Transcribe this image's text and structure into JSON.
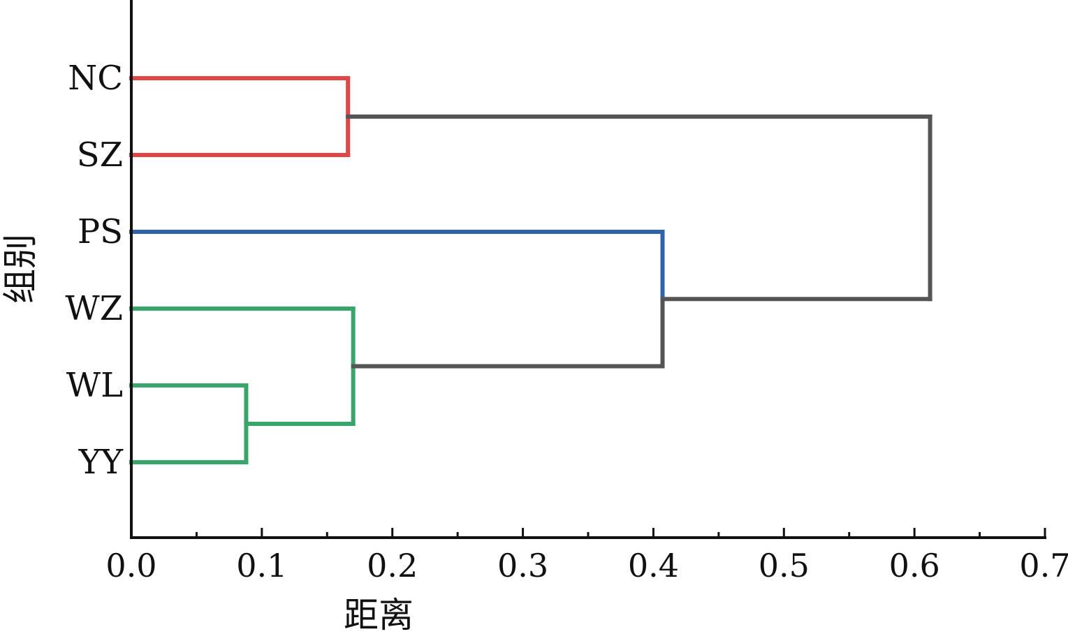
{
  "chart_data": {
    "type": "dendrogram",
    "xlabel": "距离",
    "ylabel": "组别",
    "xlim": [
      0.0,
      0.7
    ],
    "x_ticks": [
      "0.0",
      "0.1",
      "0.2",
      "0.3",
      "0.4",
      "0.5",
      "0.6",
      "0.7"
    ],
    "leaves": [
      "NC",
      "SZ",
      "PS",
      "WZ",
      "WL",
      "YY"
    ],
    "merges": [
      {
        "left": "WL",
        "right": "YY",
        "distance": 0.088,
        "color": "#3aa56a"
      },
      {
        "left": "WZ",
        "right": "WL+YY",
        "distance": 0.17,
        "color": "#3aa56a"
      },
      {
        "left": "NC",
        "right": "SZ",
        "distance": 0.166,
        "color": "#e04646"
      },
      {
        "left": "PS",
        "right": "WZ+WL+YY",
        "distance": 0.407,
        "color": "#2f64aa",
        "color_lower": "#555555"
      },
      {
        "left": "NC+SZ",
        "right": "PS+WZ+WL+YY",
        "distance": 0.612,
        "color": "#555555"
      }
    ],
    "grid": false,
    "legend": "none"
  }
}
